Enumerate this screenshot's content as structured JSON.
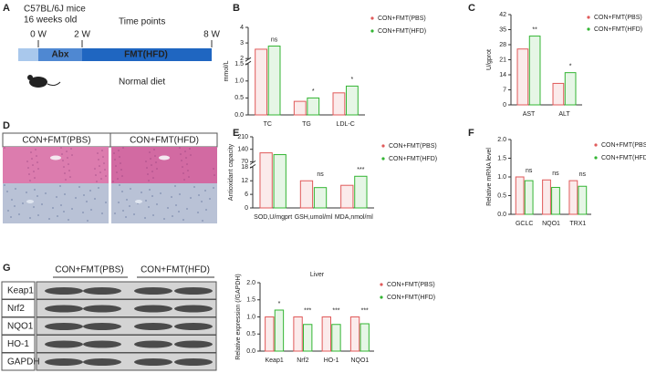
{
  "timeline": {
    "panel": "A",
    "cohort": "C57BL/6J mice",
    "age": "16 weeks old",
    "heading": "Time points",
    "ticks": [
      "0 W",
      "2 W",
      "8 W"
    ],
    "phases": [
      "Abx",
      "FMT(HFD)"
    ],
    "diet": "Normal diet"
  },
  "histology": {
    "panel": "D",
    "groups": [
      "CON+FMT(PBS)",
      "CON+FMT(HFD)"
    ]
  },
  "western_blot": {
    "panel": "G",
    "groups": [
      "CON+FMT(PBS)",
      "CON+FMT(HFD)"
    ],
    "proteins": [
      "Keap1",
      "Nrf2",
      "NQO1",
      "HO-1",
      "GAPDH"
    ]
  },
  "chart_data": [
    {
      "type": "bar",
      "panel": "B",
      "ylabel": "mmol/L",
      "categories": [
        "TC",
        "TG",
        "LDL-C"
      ],
      "series": [
        {
          "name": "CON+FMT(PBS)",
          "color": "#e05a5a",
          "values": [
            2.6,
            0.4,
            0.65
          ]
        },
        {
          "name": "CON+FMT(HFD)",
          "color": "#33b533",
          "values": [
            2.8,
            0.5,
            0.85
          ]
        }
      ],
      "annotations": [
        "ns",
        "*",
        "*"
      ],
      "ylim": [
        0,
        4
      ],
      "ybreak": [
        1.5,
        2
      ],
      "yticks": [
        {
          "value": 0,
          "label": "0.0"
        },
        0.5,
        {
          "value": 1,
          "label": "1.0"
        },
        1.5,
        2,
        3,
        4
      ]
    },
    {
      "type": "bar",
      "panel": "C",
      "ylabel": "U/gprot",
      "categories": [
        "AST",
        "ALT"
      ],
      "series": [
        {
          "name": "CON+FMT(PBS)",
          "color": "#e05a5a",
          "values": [
            26,
            10
          ]
        },
        {
          "name": "CON+FMT(HFD)",
          "color": "#33b533",
          "values": [
            32,
            15
          ]
        }
      ],
      "annotations": [
        "**",
        "*"
      ],
      "ylim": [
        0,
        42
      ],
      "yticks": [
        0,
        7,
        14,
        21,
        28,
        35,
        42
      ]
    },
    {
      "type": "bar",
      "panel": "E",
      "ylabel": "Antioxidant capacity",
      "categories": [
        "SOD,U/mgprt",
        "GSH,umol/ml",
        "MDA,nmol/ml"
      ],
      "series": [
        {
          "name": "CON+FMT(PBS)",
          "color": "#e05a5a",
          "values": [
            120,
            12,
            10
          ]
        },
        {
          "name": "CON+FMT(HFD)",
          "color": "#33b533",
          "values": [
            110,
            9,
            14
          ]
        }
      ],
      "annotations": [
        null,
        "ns",
        "***"
      ],
      "ylim": [
        0,
        210
      ],
      "ybreak": [
        18,
        70
      ],
      "yticks": [
        0,
        6,
        12,
        18,
        70,
        140,
        210
      ]
    },
    {
      "type": "bar",
      "panel": "F",
      "ylabel": "Relative mRNA level",
      "categories": [
        "GCLC",
        "NQO1",
        "TRX1"
      ],
      "series": [
        {
          "name": "CON+FMT(PBS)",
          "color": "#e05a5a",
          "values": [
            1.0,
            0.92,
            0.9
          ]
        },
        {
          "name": "CON+FMT(HFD)",
          "color": "#33b533",
          "values": [
            0.9,
            0.72,
            0.75
          ]
        }
      ],
      "annotations": [
        "ns",
        "ns",
        "ns"
      ],
      "ylim": [
        0,
        2
      ],
      "yticks": [
        {
          "value": 0,
          "label": "0.0"
        },
        0.5,
        {
          "value": 1,
          "label": "1.0"
        },
        1.5,
        {
          "value": 2,
          "label": "2.0"
        }
      ]
    },
    {
      "type": "bar",
      "title": "Liver",
      "ylabel": "Relative expression (/GAPDH)",
      "categories": [
        "Keap1",
        "Nrf2",
        "HO-1",
        "NQO1"
      ],
      "series": [
        {
          "name": "CON+FMT(PBS)",
          "color": "#e05a5a",
          "values": [
            1.0,
            1.0,
            1.0,
            1.0
          ]
        },
        {
          "name": "CON+FMT(HFD)",
          "color": "#33b533",
          "values": [
            1.2,
            0.78,
            0.78,
            0.8
          ]
        }
      ],
      "annotations": [
        "*",
        "***",
        "***",
        "***"
      ],
      "ylim": [
        0,
        2
      ],
      "yticks": [
        {
          "value": 0,
          "label": "0.0"
        },
        0.5,
        {
          "value": 1,
          "label": "1.0"
        },
        1.5,
        {
          "value": 2,
          "label": "2.0"
        }
      ]
    }
  ]
}
